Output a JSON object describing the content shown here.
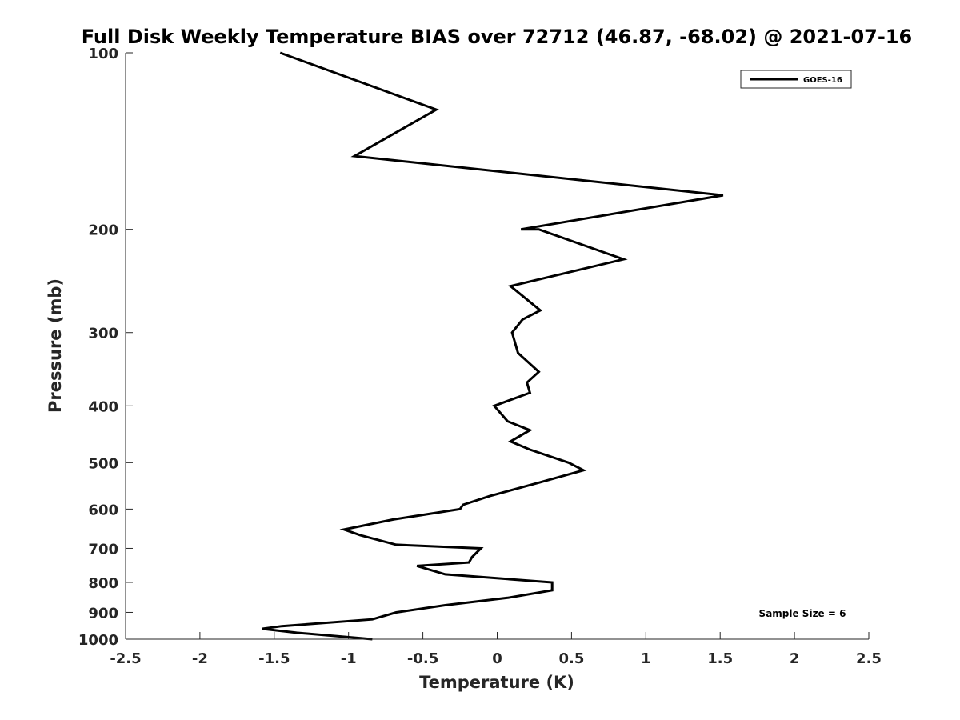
{
  "chart_data": {
    "type": "line",
    "title": "Full Disk Weekly Temperature BIAS over 72712 (46.87, -68.02) @ 2021-07-16",
    "xlabel": "Temperature (K)",
    "ylabel": "Pressure (mb)",
    "xlim": [
      -2.5,
      2.5
    ],
    "ylim": [
      100,
      1000
    ],
    "y_scale": "log",
    "y_reversed": true,
    "grid": false,
    "x_ticks": [
      "-2.5",
      "-2",
      "-1.5",
      "-1",
      "-0.5",
      "0",
      "0.5",
      "1",
      "1.5",
      "2",
      "2.5"
    ],
    "y_ticks": [
      "100",
      "200",
      "300",
      "400",
      "500",
      "600",
      "700",
      "800",
      "900",
      "1000"
    ],
    "legend": {
      "placement": "top-right",
      "entries": [
        "GOES-16"
      ]
    },
    "annotation": "Sample Size = 6",
    "series": [
      {
        "name": "GOES-16",
        "color": "#000000",
        "points": [
          {
            "x": -1.46,
            "y": 100
          },
          {
            "x": -0.41,
            "y": 125
          },
          {
            "x": -0.96,
            "y": 150
          },
          {
            "x": 1.52,
            "y": 175
          },
          {
            "x": 0.16,
            "y": 200
          },
          {
            "x": 0.28,
            "y": 200
          },
          {
            "x": 0.85,
            "y": 225
          },
          {
            "x": 0.09,
            "y": 250
          },
          {
            "x": 0.29,
            "y": 275
          },
          {
            "x": 0.17,
            "y": 285
          },
          {
            "x": 0.1,
            "y": 300
          },
          {
            "x": 0.14,
            "y": 325
          },
          {
            "x": 0.28,
            "y": 350
          },
          {
            "x": 0.2,
            "y": 365
          },
          {
            "x": 0.22,
            "y": 380
          },
          {
            "x": -0.02,
            "y": 400
          },
          {
            "x": 0.07,
            "y": 425
          },
          {
            "x": 0.22,
            "y": 440
          },
          {
            "x": 0.09,
            "y": 460
          },
          {
            "x": 0.22,
            "y": 475
          },
          {
            "x": 0.48,
            "y": 500
          },
          {
            "x": 0.58,
            "y": 515
          },
          {
            "x": 0.29,
            "y": 540
          },
          {
            "x": -0.05,
            "y": 570
          },
          {
            "x": -0.23,
            "y": 590
          },
          {
            "x": -0.25,
            "y": 600
          },
          {
            "x": -0.7,
            "y": 625
          },
          {
            "x": -1.03,
            "y": 650
          },
          {
            "x": -0.92,
            "y": 665
          },
          {
            "x": -0.68,
            "y": 690
          },
          {
            "x": -0.11,
            "y": 700
          },
          {
            "x": -0.17,
            "y": 725
          },
          {
            "x": -0.19,
            "y": 740
          },
          {
            "x": -0.54,
            "y": 750
          },
          {
            "x": -0.35,
            "y": 775
          },
          {
            "x": 0.37,
            "y": 800
          },
          {
            "x": 0.37,
            "y": 825
          },
          {
            "x": 0.07,
            "y": 850
          },
          {
            "x": -0.35,
            "y": 875
          },
          {
            "x": -0.68,
            "y": 900
          },
          {
            "x": -0.84,
            "y": 925
          },
          {
            "x": -1.45,
            "y": 950
          },
          {
            "x": -1.58,
            "y": 960
          },
          {
            "x": -1.35,
            "y": 975
          },
          {
            "x": -0.84,
            "y": 1000
          }
        ]
      }
    ]
  }
}
